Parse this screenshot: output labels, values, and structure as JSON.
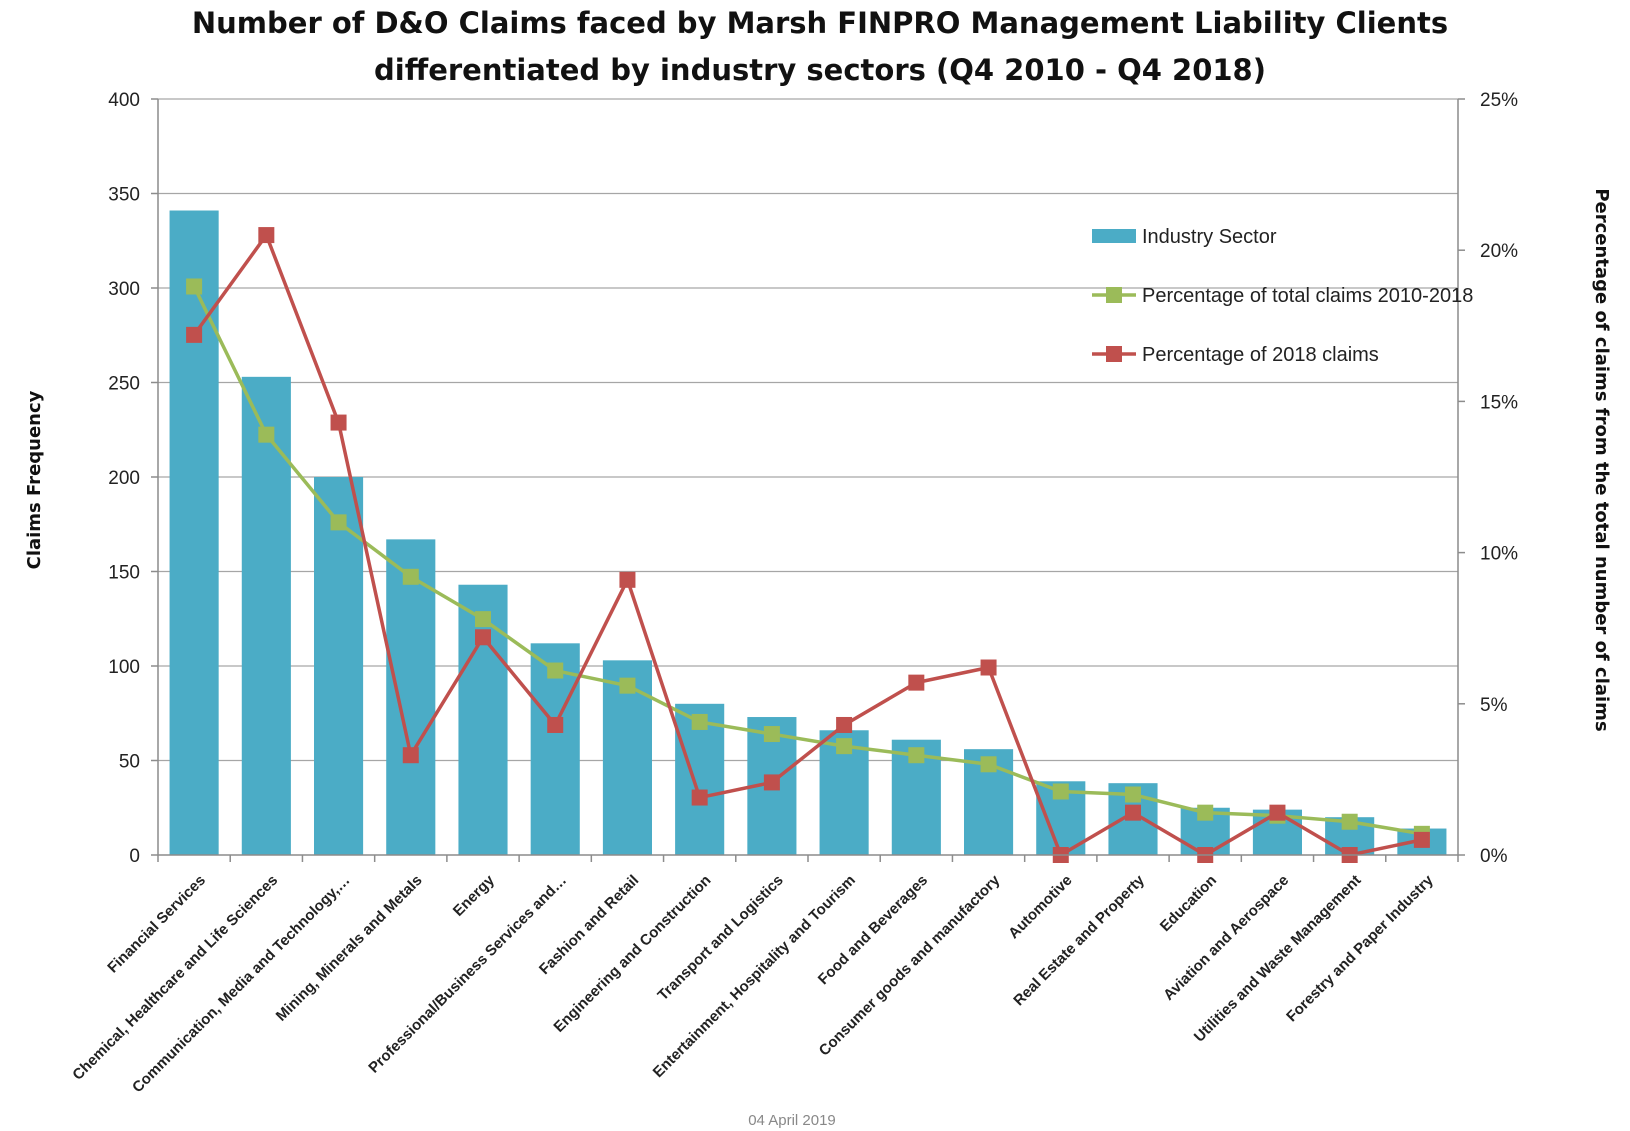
{
  "footer": {
    "date": "04 April 2019"
  },
  "chart_data": {
    "type": "bar",
    "title_lines": [
      "Number of D&O Claims faced by Marsh FINPRO Management Liability Clients",
      "differentiated by industry sectors (Q4 2010 - Q4 2018)"
    ],
    "ylabel": "Claims Frequency",
    "y2label": "Percentage of claims from the total number of claims",
    "ylim": [
      0,
      400
    ],
    "yticks": [
      0,
      50,
      100,
      150,
      200,
      250,
      300,
      350,
      400
    ],
    "y2lim": [
      0,
      25
    ],
    "y2ticks": [
      "0%",
      "5%",
      "10%",
      "15%",
      "20%",
      "25%"
    ],
    "grid": true,
    "legend_position": "top-right",
    "colors": {
      "bar": "#4BACC6",
      "total_line": "#9BBB59",
      "line_2018": "#C0504D",
      "grid": "#A6A6A6"
    },
    "categories": [
      "Financial Services",
      "Chemical, Healthcare and Life Sciences",
      "Communication, Media and Technology,…",
      "Mining, Minerals and Metals",
      "Energy",
      "Professional/Business Services and…",
      "Fashion and Retail",
      "Engineering and Construction",
      "Transport and Logistics",
      "Entertainment, Hospitality and Tourism",
      "Food and Beverages",
      "Consumer goods and manufactory",
      "Automotive",
      "Real Estate and Property",
      "Education",
      "Aviation and Aerospace",
      "Utilities and Waste Management",
      "Forestry and Paper Industry"
    ],
    "series": [
      {
        "name": "Industry Sector",
        "type": "bar",
        "axis": "left",
        "values": [
          341,
          253,
          200,
          167,
          143,
          112,
          103,
          80,
          73,
          66,
          61,
          56,
          39,
          38,
          25,
          24,
          20,
          14
        ]
      },
      {
        "name": "Percentage of total claims 2010-2018",
        "type": "line",
        "axis": "right",
        "values": [
          18.8,
          13.9,
          11.0,
          9.2,
          7.8,
          6.1,
          5.6,
          4.4,
          4.0,
          3.6,
          3.3,
          3.0,
          2.1,
          2.0,
          1.4,
          1.3,
          1.1,
          0.7
        ]
      },
      {
        "name": "Percentage of 2018 claims",
        "type": "line",
        "axis": "right",
        "values": [
          17.2,
          20.5,
          14.3,
          3.3,
          7.2,
          4.3,
          9.1,
          1.9,
          2.4,
          4.3,
          5.7,
          6.2,
          0.0,
          1.4,
          0.0,
          1.4,
          0.0,
          0.5
        ]
      }
    ]
  }
}
